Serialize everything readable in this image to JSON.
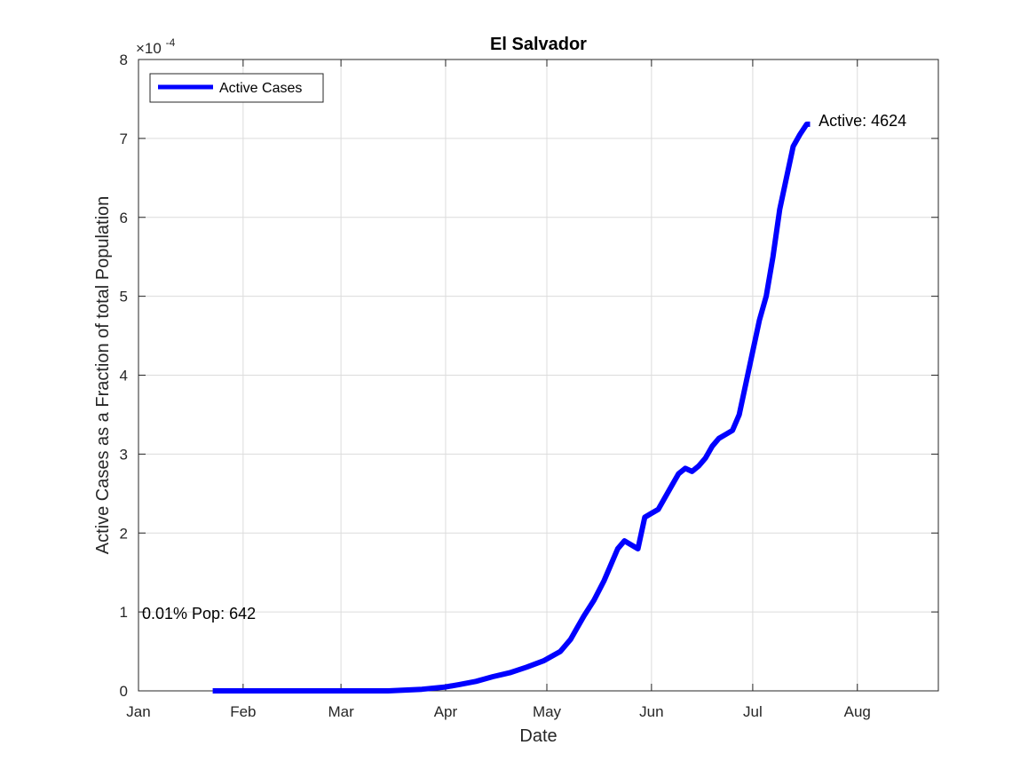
{
  "chart_data": {
    "type": "line",
    "title": "El Salvador",
    "xlabel": "Date",
    "ylabel": "Active Cases as a Fraction of total Population",
    "exponent_label": "×10",
    "exponent_power": "-4",
    "y_multiplier": 0.0001,
    "xlim": [
      "2020-01-01",
      "2020-08-25"
    ],
    "ylim": [
      0,
      8
    ],
    "grid": true,
    "legend_position": "top-left",
    "x_ticks": [
      {
        "date": "2020-01-01",
        "label": "Jan"
      },
      {
        "date": "2020-02-01",
        "label": "Feb"
      },
      {
        "date": "2020-03-01",
        "label": "Mar"
      },
      {
        "date": "2020-04-01",
        "label": "Apr"
      },
      {
        "date": "2020-05-01",
        "label": "May"
      },
      {
        "date": "2020-06-01",
        "label": "Jun"
      },
      {
        "date": "2020-07-01",
        "label": "Jul"
      },
      {
        "date": "2020-08-01",
        "label": "Aug"
      }
    ],
    "y_ticks": [
      "0",
      "1",
      "2",
      "3",
      "4",
      "5",
      "6",
      "7",
      "8"
    ],
    "series": [
      {
        "name": "Active Cases",
        "color": "#0000ff",
        "x": [
          "2020-01-23",
          "2020-02-01",
          "2020-02-15",
          "2020-03-01",
          "2020-03-15",
          "2020-03-20",
          "2020-03-25",
          "2020-04-01",
          "2020-04-05",
          "2020-04-10",
          "2020-04-15",
          "2020-04-20",
          "2020-04-25",
          "2020-04-30",
          "2020-05-05",
          "2020-05-08",
          "2020-05-10",
          "2020-05-12",
          "2020-05-15",
          "2020-05-18",
          "2020-05-20",
          "2020-05-22",
          "2020-05-24",
          "2020-05-26",
          "2020-05-28",
          "2020-05-30",
          "2020-06-01",
          "2020-06-03",
          "2020-06-05",
          "2020-06-07",
          "2020-06-09",
          "2020-06-11",
          "2020-06-13",
          "2020-06-15",
          "2020-06-17",
          "2020-06-19",
          "2020-06-21",
          "2020-06-23",
          "2020-06-25",
          "2020-06-27",
          "2020-06-29",
          "2020-07-01",
          "2020-07-03",
          "2020-07-05",
          "2020-07-07",
          "2020-07-09",
          "2020-07-11",
          "2020-07-13",
          "2020-07-15",
          "2020-07-17",
          "2020-07-18"
        ],
        "values": [
          0,
          0,
          0,
          0,
          0,
          0.01,
          0.02,
          0.05,
          0.08,
          0.12,
          0.18,
          0.23,
          0.3,
          0.38,
          0.5,
          0.65,
          0.8,
          0.95,
          1.15,
          1.4,
          1.6,
          1.8,
          1.9,
          1.85,
          1.8,
          2.2,
          2.25,
          2.3,
          2.45,
          2.6,
          2.75,
          2.82,
          2.78,
          2.85,
          2.95,
          3.1,
          3.2,
          3.25,
          3.3,
          3.5,
          3.9,
          4.3,
          4.7,
          5.0,
          5.5,
          6.1,
          6.5,
          6.9,
          7.05,
          7.18,
          7.18
        ]
      }
    ],
    "annotations": [
      {
        "text": "Active: 4624",
        "x": "2020-07-20",
        "y": 7.18
      },
      {
        "text": "0.01% Pop: 642",
        "x": "2020-01-01",
        "y": 0.98
      }
    ]
  }
}
